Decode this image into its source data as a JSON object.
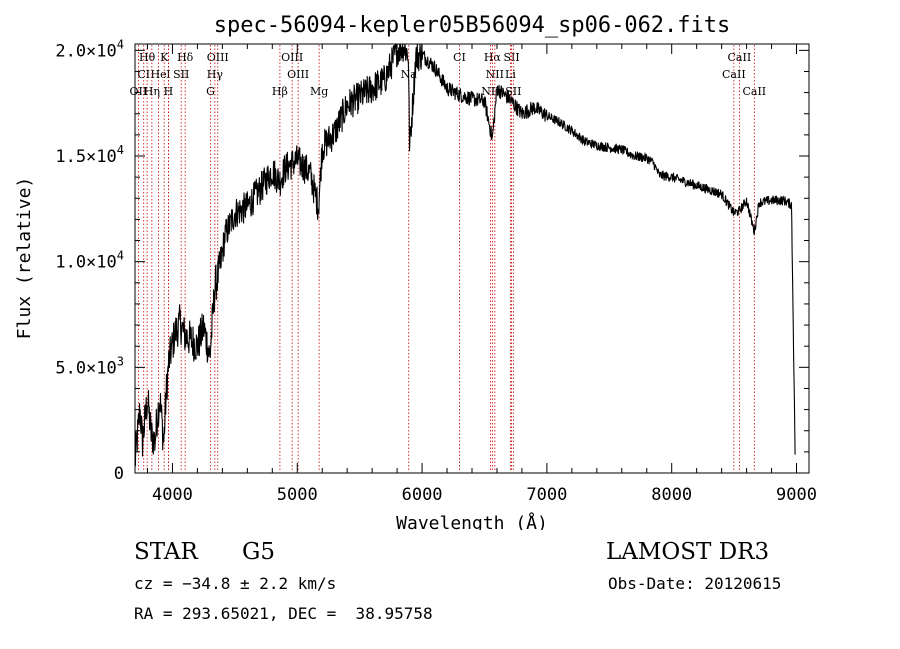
{
  "chart_data": {
    "type": "line",
    "title": "spec-56094-kepler05B56094_sp06-062.fits",
    "xlabel": "Wavelength (Å)",
    "ylabel": "Flux (relative)",
    "xlim": [
      3700,
      9100
    ],
    "ylim": [
      0,
      20300
    ],
    "x_ticks": [
      4000,
      5000,
      6000,
      7000,
      8000,
      9000
    ],
    "y_ticks": [
      {
        "value": 0,
        "mantissa": "0",
        "exponent": ""
      },
      {
        "value": 5000,
        "mantissa": "5.0×10",
        "exponent": "3"
      },
      {
        "value": 10000,
        "mantissa": "1.0×10",
        "exponent": "4"
      },
      {
        "value": 15000,
        "mantissa": "1.5×10",
        "exponent": "4"
      },
      {
        "value": 20000,
        "mantissa": "2.0×10",
        "exponent": "4"
      }
    ],
    "spectrum": {
      "name": "flux",
      "x": [
        3700,
        3740,
        3760,
        3800,
        3830,
        3860,
        3880,
        3900,
        3930,
        3950,
        3970,
        3990,
        4020,
        4060,
        4100,
        4150,
        4200,
        4250,
        4300,
        4340,
        4380,
        4420,
        4500,
        4600,
        4700,
        4800,
        4860,
        4900,
        5000,
        5100,
        5170,
        5200,
        5300,
        5400,
        5500,
        5600,
        5700,
        5750,
        5800,
        5850,
        5890,
        5900,
        5950,
        6000,
        6100,
        6200,
        6300,
        6400,
        6500,
        6563,
        6600,
        6700,
        6800,
        6900,
        7000,
        7100,
        7200,
        7300,
        7400,
        7500,
        7600,
        7700,
        7800,
        7850,
        7900,
        8000,
        8100,
        8200,
        8300,
        8400,
        8498,
        8542,
        8600,
        8662,
        8700,
        8800,
        8900,
        8960,
        8990
      ],
      "y": [
        500,
        3000,
        1500,
        3500,
        1800,
        1500,
        2800,
        3500,
        1400,
        3800,
        5200,
        5800,
        6600,
        7100,
        6500,
        6300,
        6000,
        6900,
        5500,
        8800,
        9700,
        11200,
        12300,
        12600,
        13400,
        14300,
        13800,
        14400,
        14800,
        14200,
        12600,
        15400,
        16100,
        17400,
        17800,
        18200,
        18600,
        19300,
        20000,
        20200,
        19800,
        15300,
        19700,
        19800,
        19200,
        18200,
        17900,
        17700,
        17600,
        15800,
        18200,
        17700,
        17000,
        17300,
        16900,
        16600,
        16200,
        15700,
        15500,
        15400,
        15300,
        15000,
        14900,
        14700,
        14100,
        14000,
        13800,
        13600,
        13400,
        13200,
        12300,
        12400,
        12900,
        11400,
        12800,
        12900,
        12900,
        12700,
        400
      ]
    },
    "lines": [
      {
        "label": "Hθ",
        "wavelength": 3797,
        "row": 0
      },
      {
        "label": "K",
        "wavelength": 3934,
        "row": 0
      },
      {
        "label": "Hδ",
        "wavelength": 4102,
        "row": 0
      },
      {
        "label": "OIII",
        "wavelength": 4363,
        "row": 0
      },
      {
        "label": "OIII",
        "wavelength": 4959,
        "row": 0
      },
      {
        "label": "CI",
        "wavelength": 6300,
        "row": 0
      },
      {
        "label": "Hα",
        "wavelength": 6563,
        "row": 0
      },
      {
        "label": "SII",
        "wavelength": 6717,
        "row": 0
      },
      {
        "label": "CaII",
        "wavelength": 8542,
        "row": 0
      },
      {
        "label": "CI",
        "wavelength": 3770,
        "row": 1
      },
      {
        "label": "He",
        "wavelength": 3889,
        "row": 1
      },
      {
        "label": "I",
        "wavelength": 3968,
        "row": 1
      },
      {
        "label": "SII",
        "wavelength": 4070,
        "row": 1
      },
      {
        "label": "Hγ",
        "wavelength": 4340,
        "row": 1
      },
      {
        "label": "OIII",
        "wavelength": 5007,
        "row": 1
      },
      {
        "label": "Na",
        "wavelength": 5893,
        "row": 1
      },
      {
        "label": "NII",
        "wavelength": 6583,
        "row": 1
      },
      {
        "label": "Li",
        "wavelength": 6708,
        "row": 1
      },
      {
        "label": "CaII",
        "wavelength": 8498,
        "row": 1
      },
      {
        "label": "OII",
        "wavelength": 3727,
        "row": 2
      },
      {
        "label": "Hη",
        "wavelength": 3835,
        "row": 2
      },
      {
        "label": "H",
        "wavelength": 3968,
        "row": 2
      },
      {
        "label": "G",
        "wavelength": 4305,
        "row": 2
      },
      {
        "label": "Hβ",
        "wavelength": 4861,
        "row": 2
      },
      {
        "label": "Mg",
        "wavelength": 5175,
        "row": 2
      },
      {
        "label": "NII",
        "wavelength": 6548,
        "row": 2
      },
      {
        "label": "SII",
        "wavelength": 6731,
        "row": 2
      },
      {
        "label": "CaII",
        "wavelength": 8662,
        "row": 2
      }
    ]
  },
  "info": {
    "object_class": "STAR",
    "subclass": "G5",
    "survey": "LAMOST DR3",
    "redshift": "cz = −34.8 ± 2.2 km/s",
    "obs_date": "Obs-Date: 20120615",
    "coords": "RA = 293.65021, DEC =  38.95758"
  },
  "colors": {
    "axes": "#000000",
    "spectrum": "#000000",
    "line_markers": "#cc0000"
  }
}
